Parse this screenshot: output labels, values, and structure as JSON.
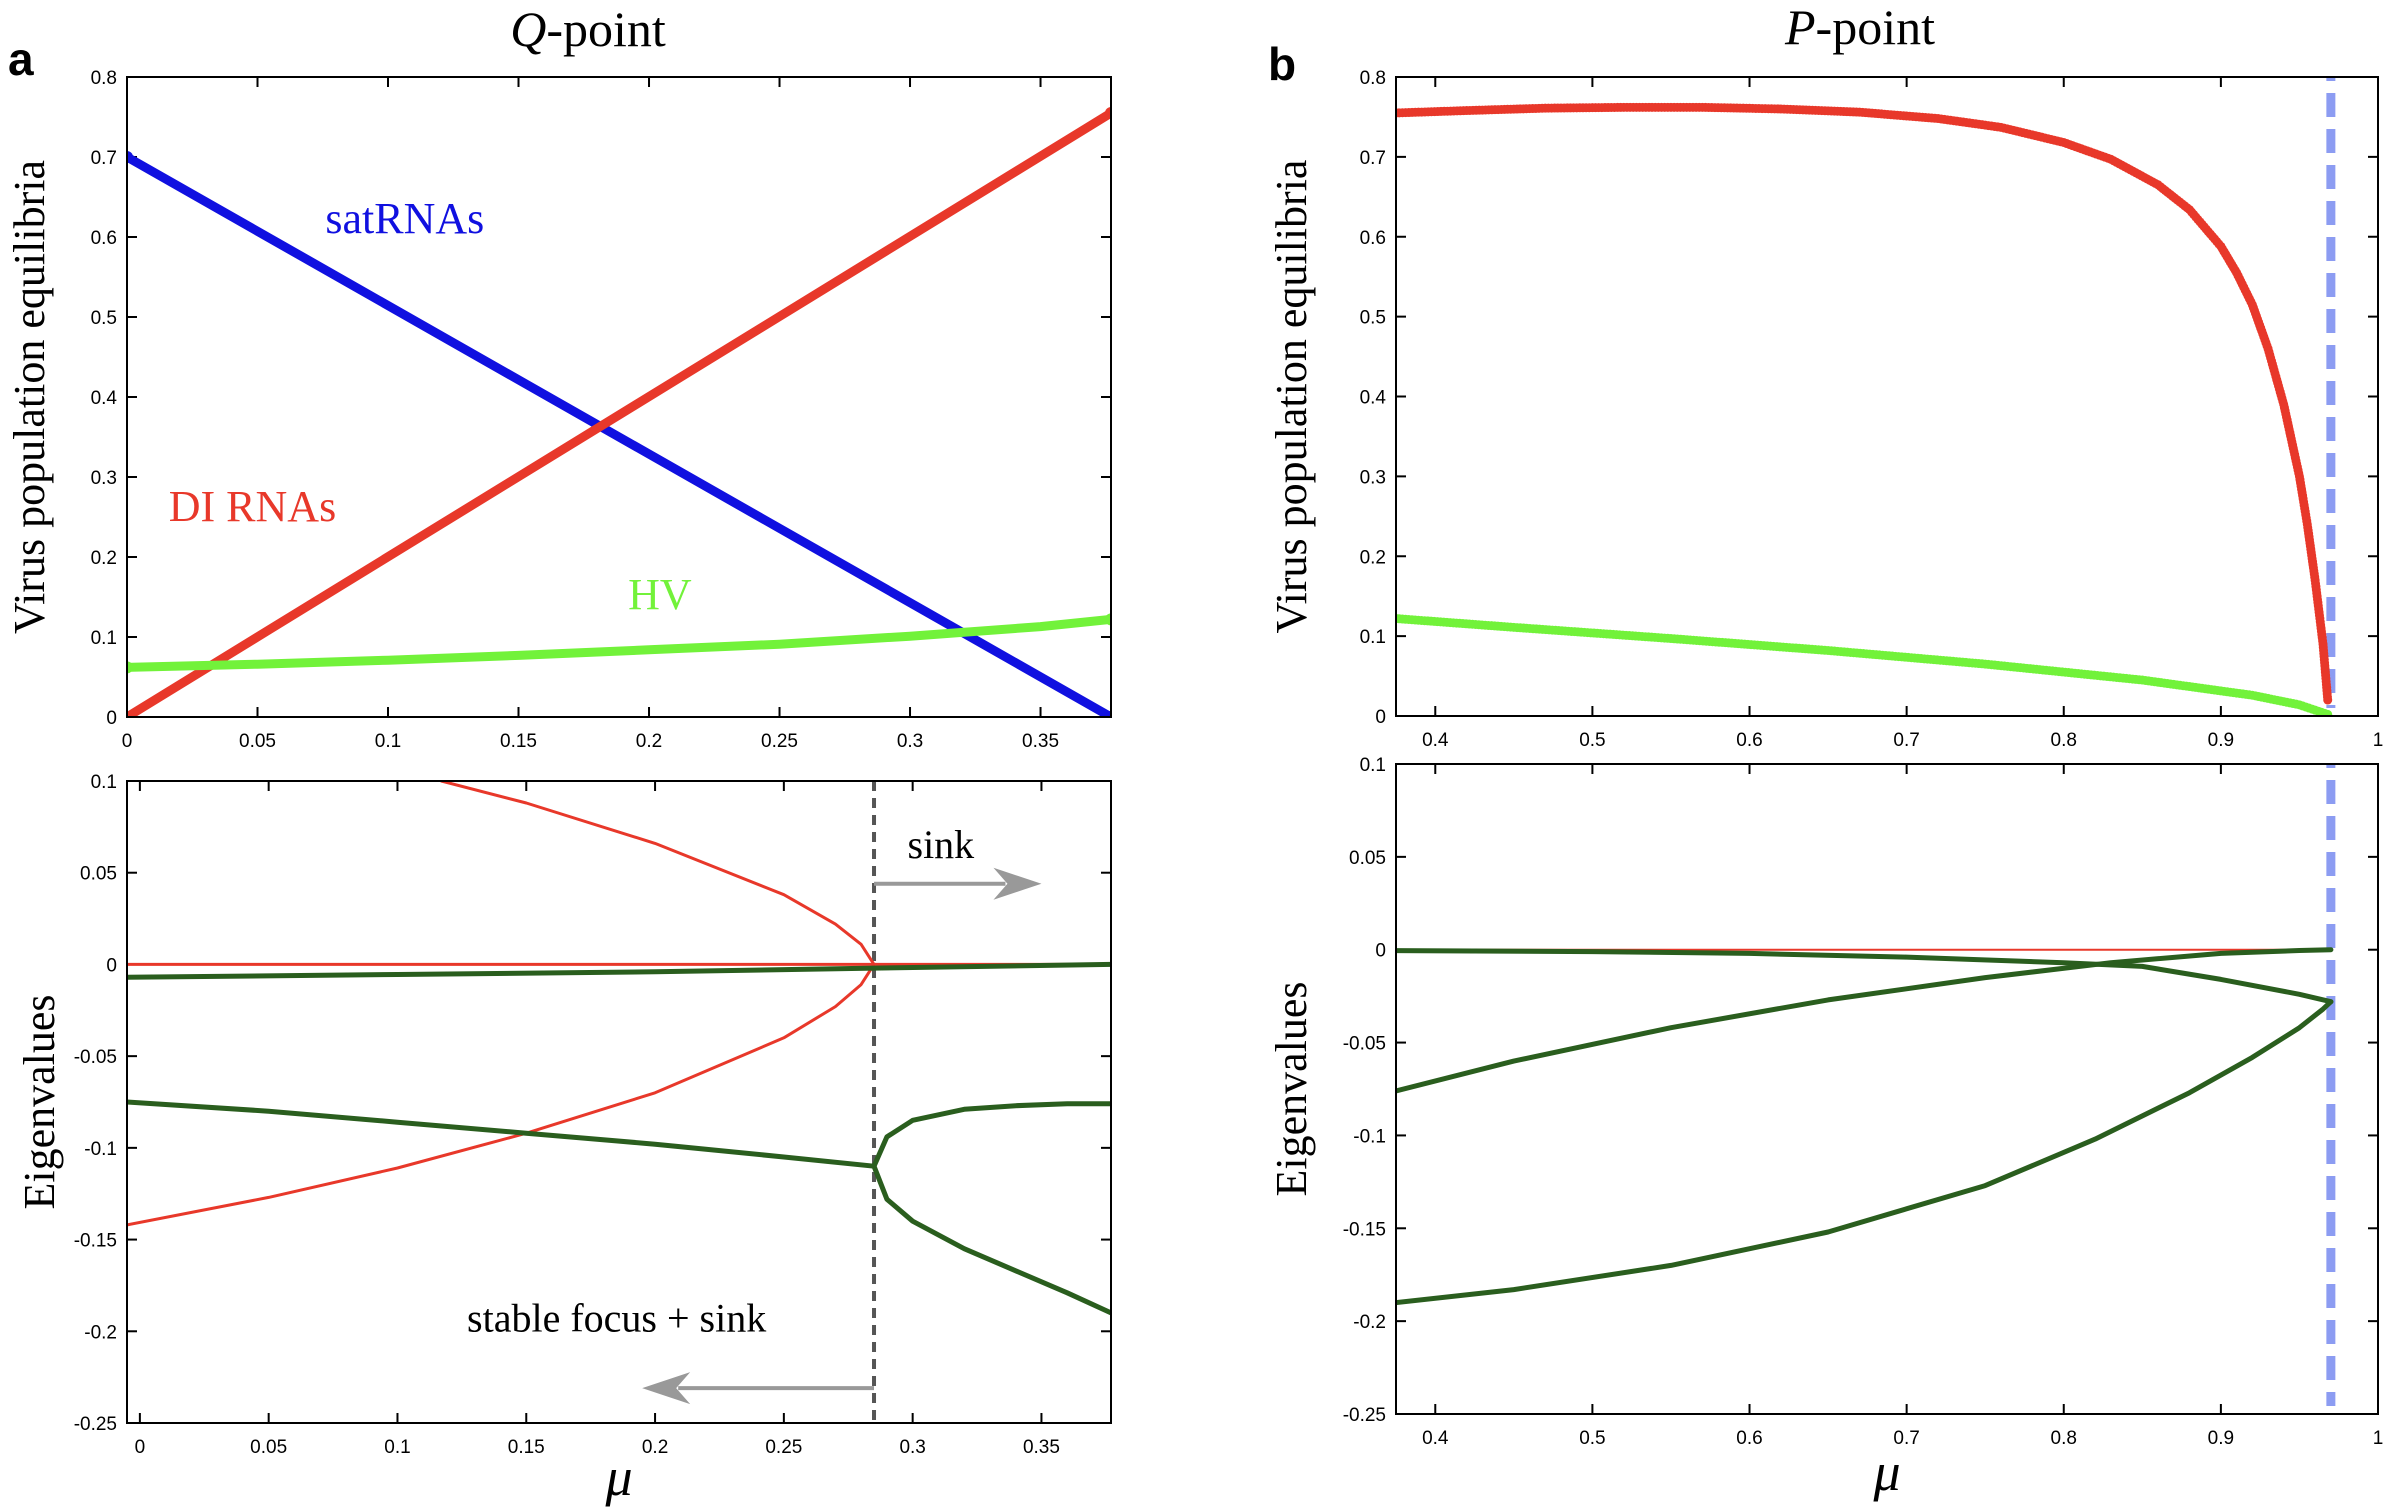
{
  "chart_data": [
    {
      "id": "a-top",
      "type": "line",
      "panel_letter": "a",
      "title_italic": "Q",
      "title_rest": "-point",
      "xlabel": "",
      "ylabel": "Virus population equilibria",
      "xlim": [
        0,
        0.377
      ],
      "ylim": [
        0,
        0.8
      ],
      "xticks": [
        0,
        0.05,
        0.1,
        0.15,
        0.2,
        0.25,
        0.3,
        0.35
      ],
      "xticklabels": [
        "0",
        "0.05",
        "0.1",
        "0.15",
        "0.2",
        "0.25",
        "0.3",
        "0.35"
      ],
      "yticks": [
        0,
        0.1,
        0.2,
        0.3,
        0.4,
        0.5,
        0.6,
        0.7,
        0.8
      ],
      "yticklabels": [
        "0",
        "0.1",
        "0.2",
        "0.3",
        "0.4",
        "0.5",
        "0.6",
        "0.7",
        "0.8"
      ],
      "series": [
        {
          "name": "satRNAs",
          "color": "#1010e0",
          "width": 9,
          "x": [
            0,
            0.377
          ],
          "y": [
            0.7,
            0.0
          ]
        },
        {
          "name": "DI RNAs",
          "color": "#e8382a",
          "width": 9,
          "x": [
            0,
            0.377
          ],
          "y": [
            0.0,
            0.755
          ]
        },
        {
          "name": "HV",
          "color": "#72f23a",
          "width": 9,
          "x": [
            0,
            0.05,
            0.1,
            0.15,
            0.2,
            0.25,
            0.3,
            0.35,
            0.377
          ],
          "y": [
            0.062,
            0.066,
            0.071,
            0.077,
            0.084,
            0.091,
            0.101,
            0.113,
            0.122
          ]
        }
      ],
      "annotations": [
        {
          "text": "satRNAs",
          "color": "#1010e0",
          "x": 0.076,
          "y": 0.605
        },
        {
          "text": "DI RNAs",
          "color": "#e8382a",
          "x": 0.016,
          "y": 0.245
        },
        {
          "text": "HV",
          "color": "#72f23a",
          "x": 0.192,
          "y": 0.135
        }
      ]
    },
    {
      "id": "a-bottom",
      "type": "line",
      "xlabel": "μ",
      "ylabel": "Eigenvalues",
      "xlim": [
        -0.005,
        0.377
      ],
      "ylim": [
        -0.25,
        0.1
      ],
      "xticks": [
        0,
        0.05,
        0.1,
        0.15,
        0.2,
        0.25,
        0.3,
        0.35
      ],
      "xticklabels": [
        "0",
        "0.05",
        "0.1",
        "0.15",
        "0.2",
        "0.25",
        "0.3",
        "0.35"
      ],
      "yticks": [
        -0.25,
        -0.2,
        -0.15,
        -0.1,
        -0.05,
        0,
        0.05,
        0.1
      ],
      "yticklabels": [
        "-0.25",
        "-0.2",
        "-0.15",
        "-0.1",
        "-0.05",
        "0",
        "0.05",
        "0.1"
      ],
      "series": [
        {
          "name": "red upper branch",
          "color": "#e8382a",
          "width": 3,
          "x": [
            0.117,
            0.15,
            0.2,
            0.25,
            0.27,
            0.28,
            0.285
          ],
          "y": [
            0.1,
            0.088,
            0.066,
            0.038,
            0.022,
            0.011,
            0.0
          ]
        },
        {
          "name": "red lower branch",
          "color": "#e8382a",
          "width": 3,
          "x": [
            -0.005,
            0.05,
            0.1,
            0.15,
            0.2,
            0.25,
            0.27,
            0.28,
            0.285
          ],
          "y": [
            -0.142,
            -0.127,
            -0.111,
            -0.092,
            -0.07,
            -0.04,
            -0.023,
            -0.011,
            0.0
          ]
        },
        {
          "name": "red zero eigenvalue",
          "color": "#e8382a",
          "width": 3,
          "x": [
            -0.005,
            0.377
          ],
          "y": [
            0.0,
            0.0
          ]
        },
        {
          "name": "green near zero",
          "color": "#2a5e1e",
          "width": 5,
          "x": [
            -0.005,
            0.1,
            0.2,
            0.285,
            0.377
          ],
          "y": [
            -0.007,
            -0.0055,
            -0.004,
            -0.002,
            0.0
          ]
        },
        {
          "name": "green before bifurcation",
          "color": "#2a5e1e",
          "width": 5,
          "x": [
            -0.005,
            0.05,
            0.1,
            0.15,
            0.2,
            0.25,
            0.285
          ],
          "y": [
            -0.075,
            -0.08,
            -0.086,
            -0.092,
            -0.098,
            -0.105,
            -0.11
          ]
        },
        {
          "name": "green upper after bifurcation",
          "color": "#2a5e1e",
          "width": 5,
          "x": [
            0.285,
            0.29,
            0.3,
            0.32,
            0.34,
            0.36,
            0.377
          ],
          "y": [
            -0.11,
            -0.094,
            -0.085,
            -0.079,
            -0.077,
            -0.076,
            -0.076
          ]
        },
        {
          "name": "green lower after bifurcation",
          "color": "#2a5e1e",
          "width": 5,
          "x": [
            0.285,
            0.29,
            0.3,
            0.32,
            0.34,
            0.36,
            0.377
          ],
          "y": [
            -0.11,
            -0.128,
            -0.14,
            -0.155,
            -0.167,
            -0.179,
            -0.19
          ]
        }
      ],
      "vline": {
        "x": 0.285,
        "color": "#555555",
        "style": "dashed"
      },
      "annotations": [
        {
          "text": "sink",
          "x": 0.298,
          "y": 0.058
        },
        {
          "text": "stable focus + sink",
          "x": 0.127,
          "y": -0.2
        }
      ],
      "arrows": [
        {
          "name": "sink arrow",
          "x0": 0.285,
          "y0": 0.044,
          "x1": 0.35,
          "y1": 0.044,
          "color": "#999999"
        },
        {
          "name": "stable focus arrow",
          "x0": 0.285,
          "y0": -0.231,
          "x1": 0.195,
          "y1": -0.231,
          "color": "#999999"
        }
      ]
    },
    {
      "id": "b-top",
      "type": "scatter",
      "panel_letter": "b",
      "title_italic": "P",
      "title_rest": "-point",
      "xlabel": "",
      "ylabel": "Virus population equilibria",
      "xlim": [
        0.375,
        1.0
      ],
      "ylim": [
        0,
        0.8
      ],
      "xticks": [
        0.4,
        0.5,
        0.6,
        0.7,
        0.8,
        0.9,
        1.0
      ],
      "xticklabels": [
        "0.4",
        "0.5",
        "0.6",
        "0.7",
        "0.8",
        "0.9",
        "1"
      ],
      "yticks": [
        0,
        0.1,
        0.2,
        0.3,
        0.4,
        0.5,
        0.6,
        0.7,
        0.8
      ],
      "yticklabels": [
        "0",
        "0.1",
        "0.2",
        "0.3",
        "0.4",
        "0.5",
        "0.6",
        "0.7",
        "0.8"
      ],
      "series": [
        {
          "name": "DI RNAs",
          "color": "#e8382a",
          "x": [
            0.375,
            0.42,
            0.47,
            0.52,
            0.57,
            0.62,
            0.67,
            0.72,
            0.76,
            0.8,
            0.83,
            0.86,
            0.88,
            0.9,
            0.91,
            0.92,
            0.93,
            0.94,
            0.95,
            0.955,
            0.96,
            0.965,
            0.968
          ],
          "y": [
            0.755,
            0.758,
            0.761,
            0.762,
            0.762,
            0.76,
            0.756,
            0.748,
            0.737,
            0.718,
            0.697,
            0.665,
            0.634,
            0.588,
            0.555,
            0.515,
            0.46,
            0.39,
            0.3,
            0.24,
            0.17,
            0.09,
            0.02
          ]
        },
        {
          "name": "HV",
          "color": "#72f23a",
          "x": [
            0.375,
            0.45,
            0.55,
            0.65,
            0.75,
            0.85,
            0.92,
            0.95,
            0.968
          ],
          "y": [
            0.122,
            0.111,
            0.097,
            0.082,
            0.065,
            0.045,
            0.026,
            0.014,
            0.002
          ]
        }
      ],
      "vline": {
        "x": 0.97,
        "color": "#8c9cf2",
        "style": "dashed"
      }
    },
    {
      "id": "b-bottom",
      "type": "line",
      "xlabel": "μ",
      "ylabel": "Eigenvalues",
      "xlim": [
        0.375,
        1.0
      ],
      "ylim": [
        -0.25,
        0.1
      ],
      "xticks": [
        0.4,
        0.5,
        0.6,
        0.7,
        0.8,
        0.9,
        1.0
      ],
      "xticklabels": [
        "0.4",
        "0.5",
        "0.6",
        "0.7",
        "0.8",
        "0.9",
        "1"
      ],
      "yticks": [
        -0.25,
        -0.2,
        -0.15,
        -0.1,
        -0.05,
        0,
        0.05,
        0.1
      ],
      "yticklabels": [
        "-0.25",
        "-0.2",
        "-0.15",
        "-0.1",
        "-0.05",
        "0",
        "0.05",
        "0.1"
      ],
      "series": [
        {
          "name": "red zero eigenvalue",
          "color": "#e8382a",
          "width": 2,
          "x": [
            0.375,
            0.97
          ],
          "y": [
            0.0,
            0.0
          ]
        },
        {
          "name": "green small",
          "color": "#2a5e1e",
          "width": 5,
          "x": [
            0.375,
            0.5,
            0.6,
            0.7,
            0.8,
            0.85,
            0.9,
            0.95,
            0.97
          ],
          "y": [
            -0.0005,
            -0.001,
            -0.002,
            -0.004,
            -0.007,
            -0.009,
            -0.016,
            -0.024,
            -0.028
          ]
        },
        {
          "name": "green middle",
          "color": "#2a5e1e",
          "width": 5,
          "x": [
            0.375,
            0.45,
            0.55,
            0.65,
            0.75,
            0.83,
            0.9,
            0.95,
            0.97
          ],
          "y": [
            -0.076,
            -0.06,
            -0.042,
            -0.027,
            -0.015,
            -0.007,
            -0.002,
            -0.0004,
            0.0
          ]
        },
        {
          "name": "green large",
          "color": "#2a5e1e",
          "width": 5,
          "x": [
            0.375,
            0.45,
            0.55,
            0.65,
            0.75,
            0.82,
            0.88,
            0.92,
            0.95,
            0.965,
            0.97
          ],
          "y": [
            -0.19,
            -0.183,
            -0.17,
            -0.152,
            -0.127,
            -0.102,
            -0.077,
            -0.058,
            -0.042,
            -0.032,
            -0.028
          ]
        }
      ],
      "vline": {
        "x": 0.97,
        "color": "#8c9cf2",
        "style": "dashed"
      }
    }
  ]
}
